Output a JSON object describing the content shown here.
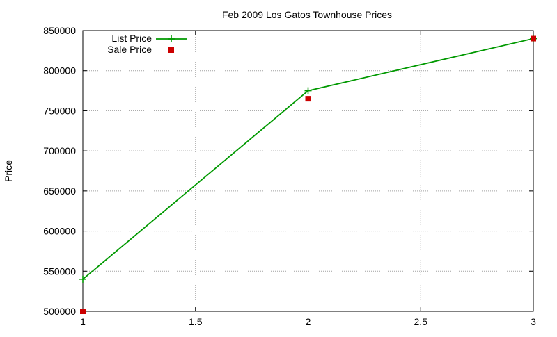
{
  "chart_data": {
    "type": "line",
    "title": "Feb 2009 Los Gatos Townhouse Prices",
    "xlabel": "",
    "ylabel": "Price",
    "xlim": [
      1,
      3
    ],
    "ylim": [
      500000,
      850000
    ],
    "x_ticks": [
      1,
      1.5,
      2,
      2.5,
      3
    ],
    "x_tick_labels": [
      "1",
      "1.5",
      "2",
      "2.5",
      "3"
    ],
    "y_ticks": [
      500000,
      550000,
      600000,
      650000,
      700000,
      750000,
      800000,
      850000
    ],
    "y_tick_labels": [
      "500000",
      "550000",
      "600000",
      "650000",
      "700000",
      "750000",
      "800000",
      "850000"
    ],
    "grid": true,
    "legend_position": "top-left",
    "series": [
      {
        "name": "List Price",
        "style": "linespoints",
        "marker": "plus",
        "color": "#009900",
        "x": [
          1,
          2,
          3
        ],
        "y": [
          540000,
          775000,
          840000
        ]
      },
      {
        "name": "Sale Price",
        "style": "points",
        "marker": "square",
        "color": "#cc0000",
        "x": [
          1,
          2,
          3
        ],
        "y": [
          500000,
          765000,
          840000
        ]
      }
    ]
  }
}
